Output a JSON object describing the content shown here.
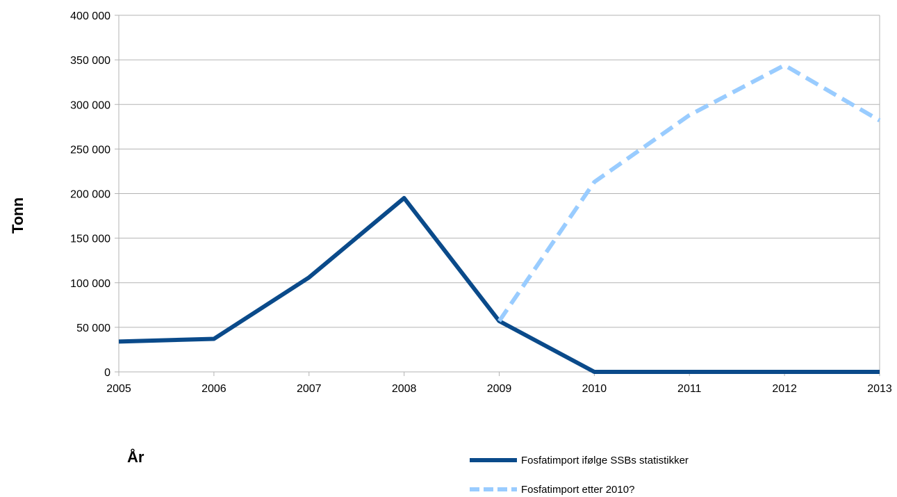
{
  "chart_data": {
    "type": "line",
    "x": [
      "2005",
      "2006",
      "2007",
      "2008",
      "2009",
      "2010",
      "2011",
      "2012",
      "2013"
    ],
    "series": [
      {
        "name": "Fosfatimport ifølge SSBs statistikker",
        "values": [
          34000,
          37000,
          106000,
          195000,
          57000,
          0,
          0,
          0,
          0
        ],
        "color": "#0a4a8a",
        "style": "solid"
      },
      {
        "name": "Fosfatimport etter 2010?",
        "values": [
          null,
          null,
          null,
          null,
          57000,
          213000,
          288000,
          344000,
          282000
        ],
        "color": "#99ccff",
        "style": "dashed"
      }
    ],
    "title": "",
    "xlabel": "År",
    "ylabel": "Tonn",
    "ylim": [
      0,
      400000
    ],
    "yticks": [
      0,
      50000,
      100000,
      150000,
      200000,
      250000,
      300000,
      350000,
      400000
    ],
    "ytick_labels": [
      "0",
      "50 000",
      "100 000",
      "150 000",
      "200 000",
      "250 000",
      "300 000",
      "350 000",
      "400 000"
    ],
    "grid": true,
    "legend_position": "bottom-right"
  }
}
